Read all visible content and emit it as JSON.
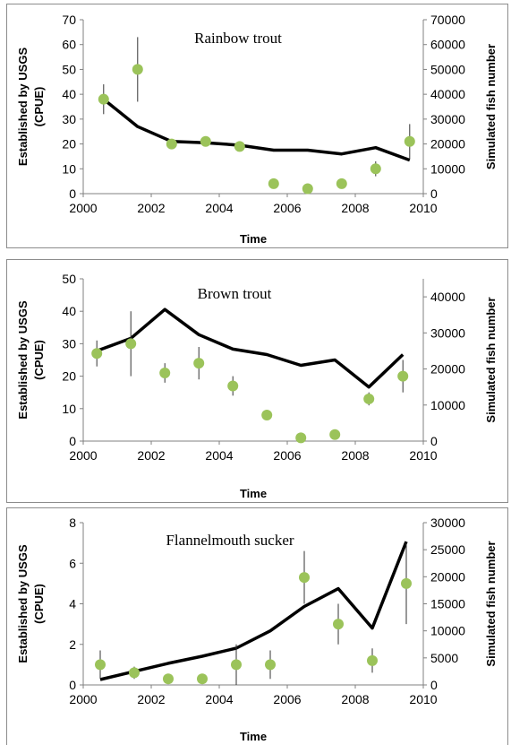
{
  "colors": {
    "observed": "#9bc35a",
    "simulated": "#000000",
    "error_bar": "#333333"
  },
  "chart_data": [
    {
      "type": "line",
      "title": "Rainbow trout",
      "xlabel": "Time",
      "ylabel_left": [
        "Established by USGS",
        "(CPUE)"
      ],
      "ylabel_right": "Simulated fish number",
      "xlim": [
        2000,
        2010
      ],
      "ylim_left": [
        0,
        70
      ],
      "ylim_right": [
        0,
        70000
      ],
      "x_ticks": [
        2000,
        2002,
        2004,
        2006,
        2008,
        2010
      ],
      "y_ticks_left": [
        0,
        10,
        20,
        30,
        40,
        50,
        60,
        70
      ],
      "y_ticks_right": [
        0,
        10000,
        20000,
        30000,
        40000,
        50000,
        60000,
        70000
      ],
      "series": [
        {
          "axis": "left",
          "marker": "circle",
          "x": [
            2000.6,
            2001.6,
            2002.6,
            2003.6,
            2004.6,
            2005.6,
            2006.6,
            2007.6,
            2008.6,
            2009.6
          ],
          "y": [
            38,
            50,
            20,
            21,
            19,
            4,
            2,
            4,
            10,
            21
          ],
          "err_low": [
            32,
            37,
            null,
            null,
            null,
            null,
            null,
            null,
            7,
            14
          ],
          "err_high": [
            44,
            63,
            null,
            null,
            null,
            null,
            null,
            null,
            13,
            28
          ]
        },
        {
          "axis": "right",
          "marker": "line",
          "x": [
            2000.6,
            2001.6,
            2002.6,
            2003.6,
            2004.6,
            2005.6,
            2006.6,
            2007.6,
            2008.6,
            2009.6
          ],
          "y": [
            38000,
            27000,
            21000,
            20500,
            19500,
            17500,
            17500,
            16000,
            18500,
            13500
          ]
        }
      ]
    },
    {
      "type": "line",
      "title": "Brown trout",
      "xlabel": "Time",
      "ylabel_left": [
        "Established by USGS",
        "(CPUE)"
      ],
      "ylabel_right": "Simulated fish number",
      "xlim": [
        2000,
        2010
      ],
      "ylim_left": [
        0,
        50
      ],
      "ylim_right": [
        0,
        45000
      ],
      "x_ticks": [
        2000,
        2002,
        2004,
        2006,
        2008,
        2010
      ],
      "y_ticks_left": [
        0,
        10,
        20,
        30,
        40,
        50
      ],
      "y_ticks_right": [
        0,
        10000,
        20000,
        30000,
        40000
      ],
      "series": [
        {
          "axis": "left",
          "marker": "circle",
          "x": [
            2000.4,
            2001.4,
            2002.4,
            2003.4,
            2004.4,
            2005.4,
            2006.4,
            2007.4,
            2008.4,
            2009.4
          ],
          "y": [
            27,
            30,
            21,
            24,
            17,
            8,
            1,
            2,
            13,
            20
          ],
          "err_low": [
            23,
            20,
            18,
            19,
            14,
            null,
            null,
            null,
            11,
            15
          ],
          "err_high": [
            31,
            40,
            24,
            29,
            20,
            null,
            null,
            null,
            15,
            25
          ]
        },
        {
          "axis": "right",
          "marker": "line",
          "x": [
            2000.4,
            2001.4,
            2002.4,
            2003.4,
            2004.4,
            2005.4,
            2006.4,
            2007.4,
            2008.4,
            2009.4
          ],
          "y": [
            25000,
            28500,
            36500,
            29500,
            25500,
            24000,
            21000,
            22500,
            15000,
            24000
          ]
        }
      ]
    },
    {
      "type": "line",
      "title": "Flannelmouth sucker",
      "xlabel": "Time",
      "ylabel_left": [
        "Established by USGS",
        "(CPUE)"
      ],
      "ylabel_right": "Simulated fish number",
      "xlim": [
        2000,
        2010
      ],
      "ylim_left": [
        0,
        8
      ],
      "ylim_right": [
        0,
        30000
      ],
      "x_ticks": [
        2000,
        2002,
        2004,
        2006,
        2008,
        2010
      ],
      "y_ticks_left": [
        0,
        2,
        4,
        6,
        8
      ],
      "y_ticks_right": [
        0,
        5000,
        10000,
        15000,
        20000,
        25000,
        30000
      ],
      "series": [
        {
          "axis": "left",
          "marker": "circle",
          "x": [
            2000.5,
            2001.5,
            2002.5,
            2003.5,
            2004.5,
            2005.5,
            2006.5,
            2007.5,
            2008.5,
            2009.5
          ],
          "y": [
            1,
            0.6,
            0.3,
            0.3,
            1,
            1,
            5.3,
            3,
            1.2,
            5
          ],
          "err_low": [
            0.3,
            0.3,
            null,
            null,
            0,
            0.3,
            4,
            2,
            0.6,
            3
          ],
          "err_high": [
            1.7,
            0.9,
            null,
            null,
            2,
            1.7,
            6.6,
            4,
            1.8,
            7
          ]
        },
        {
          "axis": "right",
          "marker": "line",
          "x": [
            2000.5,
            2001.5,
            2002.5,
            2003.5,
            2004.5,
            2005.5,
            2006.5,
            2007.5,
            2008.5,
            2009.5
          ],
          "y": [
            1000,
            2500,
            4000,
            5300,
            6800,
            10000,
            14500,
            17800,
            10500,
            26500
          ]
        }
      ]
    }
  ]
}
